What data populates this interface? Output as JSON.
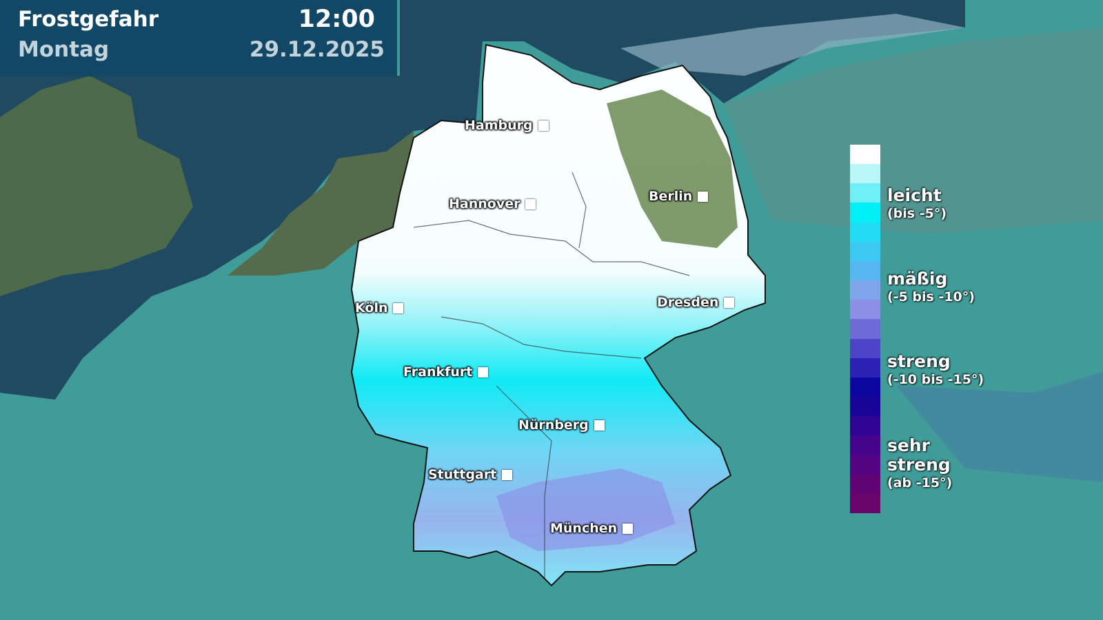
{
  "header": {
    "title": "Frostgefahr",
    "day": "Montag",
    "time": "12:00",
    "date": "29.12.2025"
  },
  "colors": {
    "header_bg": "#124766",
    "sea": "#1f4a62",
    "land_bg": "#3f9c98",
    "legend": [
      "#ffffff",
      "#b8f6f8",
      "#6ef0f6",
      "#00eef6",
      "#22dcf4",
      "#3ccaf2",
      "#56b6f0",
      "#7fa6ec",
      "#8b8fe6",
      "#6e6ad8",
      "#4d44c8",
      "#2c22b4",
      "#0c06a0",
      "#1a0498",
      "#300492",
      "#44048a",
      "#540480",
      "#600474",
      "#68046a"
    ]
  },
  "cities": [
    {
      "name": "Hamburg"
    },
    {
      "name": "Hannover"
    },
    {
      "name": "Berlin"
    },
    {
      "name": "Köln"
    },
    {
      "name": "Dresden"
    },
    {
      "name": "Frankfurt"
    },
    {
      "name": "Nürnberg"
    },
    {
      "name": "Stuttgart"
    },
    {
      "name": "München"
    }
  ],
  "legend": [
    {
      "name": "leicht",
      "range": "(bis -5°)"
    },
    {
      "name": "mäßig",
      "range": "(-5 bis -10°)"
    },
    {
      "name": "streng",
      "range": "(-10 bis -15°)"
    },
    {
      "name": "sehr streng",
      "range": "(ab -15°)"
    }
  ]
}
